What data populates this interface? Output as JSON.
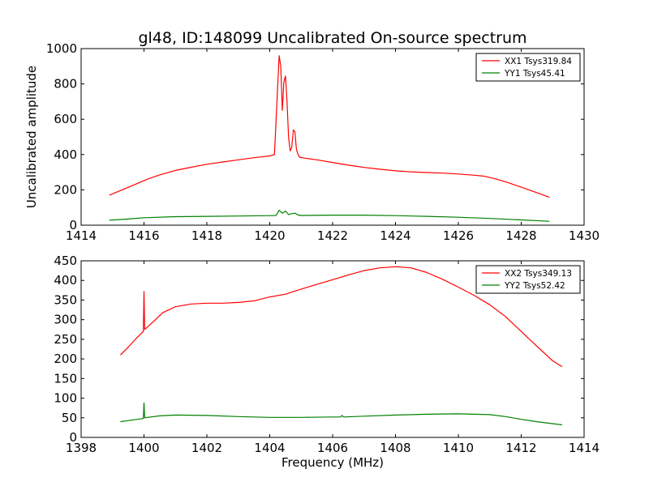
{
  "title": "gl48, ID:148099 Uncalibrated On-source spectrum",
  "xlabel": "Frequency (MHz)",
  "ylabel": "Uncalibrated amplitude",
  "colors": {
    "xx": "#ff0000",
    "yy": "#008000",
    "axes": "#000000"
  },
  "chart_data": [
    {
      "type": "line",
      "title": "gl48, ID:148099 Uncalibrated On-source spectrum",
      "xlabel": "",
      "ylabel": "Uncalibrated amplitude",
      "xlim": [
        1414,
        1430
      ],
      "ylim": [
        0,
        1000
      ],
      "xticks": [
        1414,
        1416,
        1418,
        1420,
        1422,
        1424,
        1426,
        1428,
        1430
      ],
      "yticks": [
        0,
        200,
        400,
        600,
        800,
        1000
      ],
      "legend": "top-right",
      "series": [
        {
          "name": "XX1 Tsys319.84",
          "color": "#ff0000",
          "x": [
            1414.9,
            1415.3,
            1415.7,
            1416.1,
            1416.5,
            1417.0,
            1417.5,
            1418.0,
            1418.5,
            1419.0,
            1419.5,
            1420.0,
            1420.15,
            1420.3,
            1420.35,
            1420.4,
            1420.45,
            1420.5,
            1420.55,
            1420.6,
            1420.65,
            1420.7,
            1420.75,
            1420.8,
            1420.85,
            1420.9,
            1420.95,
            1421.1,
            1421.5,
            1422.0,
            1422.5,
            1423.0,
            1423.5,
            1424.0,
            1424.5,
            1425.0,
            1425.5,
            1426.0,
            1426.5,
            1426.8,
            1427.2,
            1427.6,
            1428.0,
            1428.4,
            1428.9
          ],
          "values": [
            170,
            200,
            230,
            260,
            285,
            310,
            328,
            345,
            358,
            370,
            382,
            392,
            400,
            960,
            900,
            650,
            810,
            845,
            700,
            500,
            420,
            440,
            540,
            530,
            430,
            400,
            385,
            380,
            370,
            355,
            340,
            327,
            317,
            308,
            302,
            298,
            295,
            290,
            283,
            278,
            262,
            240,
            215,
            190,
            158
          ]
        },
        {
          "name": "YY1 Tsys45.41",
          "color": "#008000",
          "x": [
            1414.9,
            1415.5,
            1416.0,
            1417.0,
            1418.0,
            1419.0,
            1420.0,
            1420.2,
            1420.3,
            1420.4,
            1420.5,
            1420.6,
            1420.7,
            1420.8,
            1420.9,
            1421.0,
            1422.0,
            1423.0,
            1424.0,
            1425.0,
            1426.0,
            1427.0,
            1428.0,
            1428.9
          ],
          "values": [
            28,
            35,
            42,
            48,
            50,
            52,
            54,
            55,
            85,
            68,
            80,
            60,
            65,
            68,
            58,
            55,
            57,
            57,
            54,
            50,
            45,
            38,
            30,
            22
          ]
        }
      ]
    },
    {
      "type": "line",
      "title": "",
      "xlabel": "Frequency (MHz)",
      "ylabel": "",
      "xlim": [
        1398,
        1414
      ],
      "ylim": [
        0,
        450
      ],
      "xticks": [
        1398,
        1400,
        1402,
        1404,
        1406,
        1408,
        1410,
        1412,
        1414
      ],
      "yticks": [
        0,
        50,
        100,
        150,
        200,
        250,
        300,
        350,
        400,
        450
      ],
      "legend": "top-right",
      "series": [
        {
          "name": "XX2 Tsys349.13",
          "color": "#ff0000",
          "x": [
            1399.25,
            1399.5,
            1399.75,
            1399.98,
            1400.0,
            1400.02,
            1400.3,
            1400.6,
            1401.0,
            1401.5,
            1402.0,
            1402.5,
            1403.0,
            1403.5,
            1404.0,
            1404.5,
            1405.0,
            1405.5,
            1406.0,
            1406.5,
            1407.0,
            1407.5,
            1408.0,
            1408.5,
            1409.0,
            1409.5,
            1410.0,
            1410.5,
            1411.0,
            1411.5,
            1412.0,
            1412.5,
            1413.0,
            1413.3
          ],
          "values": [
            210,
            230,
            252,
            270,
            372,
            275,
            295,
            318,
            333,
            340,
            342,
            342,
            344,
            348,
            358,
            365,
            378,
            390,
            402,
            414,
            425,
            432,
            435,
            432,
            420,
            403,
            383,
            362,
            338,
            308,
            270,
            232,
            195,
            180
          ]
        },
        {
          "name": "YY2 Tsys52.42",
          "color": "#008000",
          "x": [
            1399.25,
            1399.6,
            1399.98,
            1400.0,
            1400.02,
            1400.5,
            1401.0,
            1402.0,
            1403.0,
            1404.0,
            1405.0,
            1406.0,
            1406.25,
            1406.3,
            1406.35,
            1407.0,
            1408.0,
            1409.0,
            1410.0,
            1411.0,
            1411.5,
            1412.0,
            1412.5,
            1413.3
          ],
          "values": [
            40,
            44,
            48,
            88,
            50,
            55,
            57,
            56,
            53,
            51,
            51,
            52,
            52,
            56,
            52,
            54,
            57,
            59,
            60,
            58,
            53,
            46,
            40,
            32
          ]
        }
      ]
    }
  ]
}
